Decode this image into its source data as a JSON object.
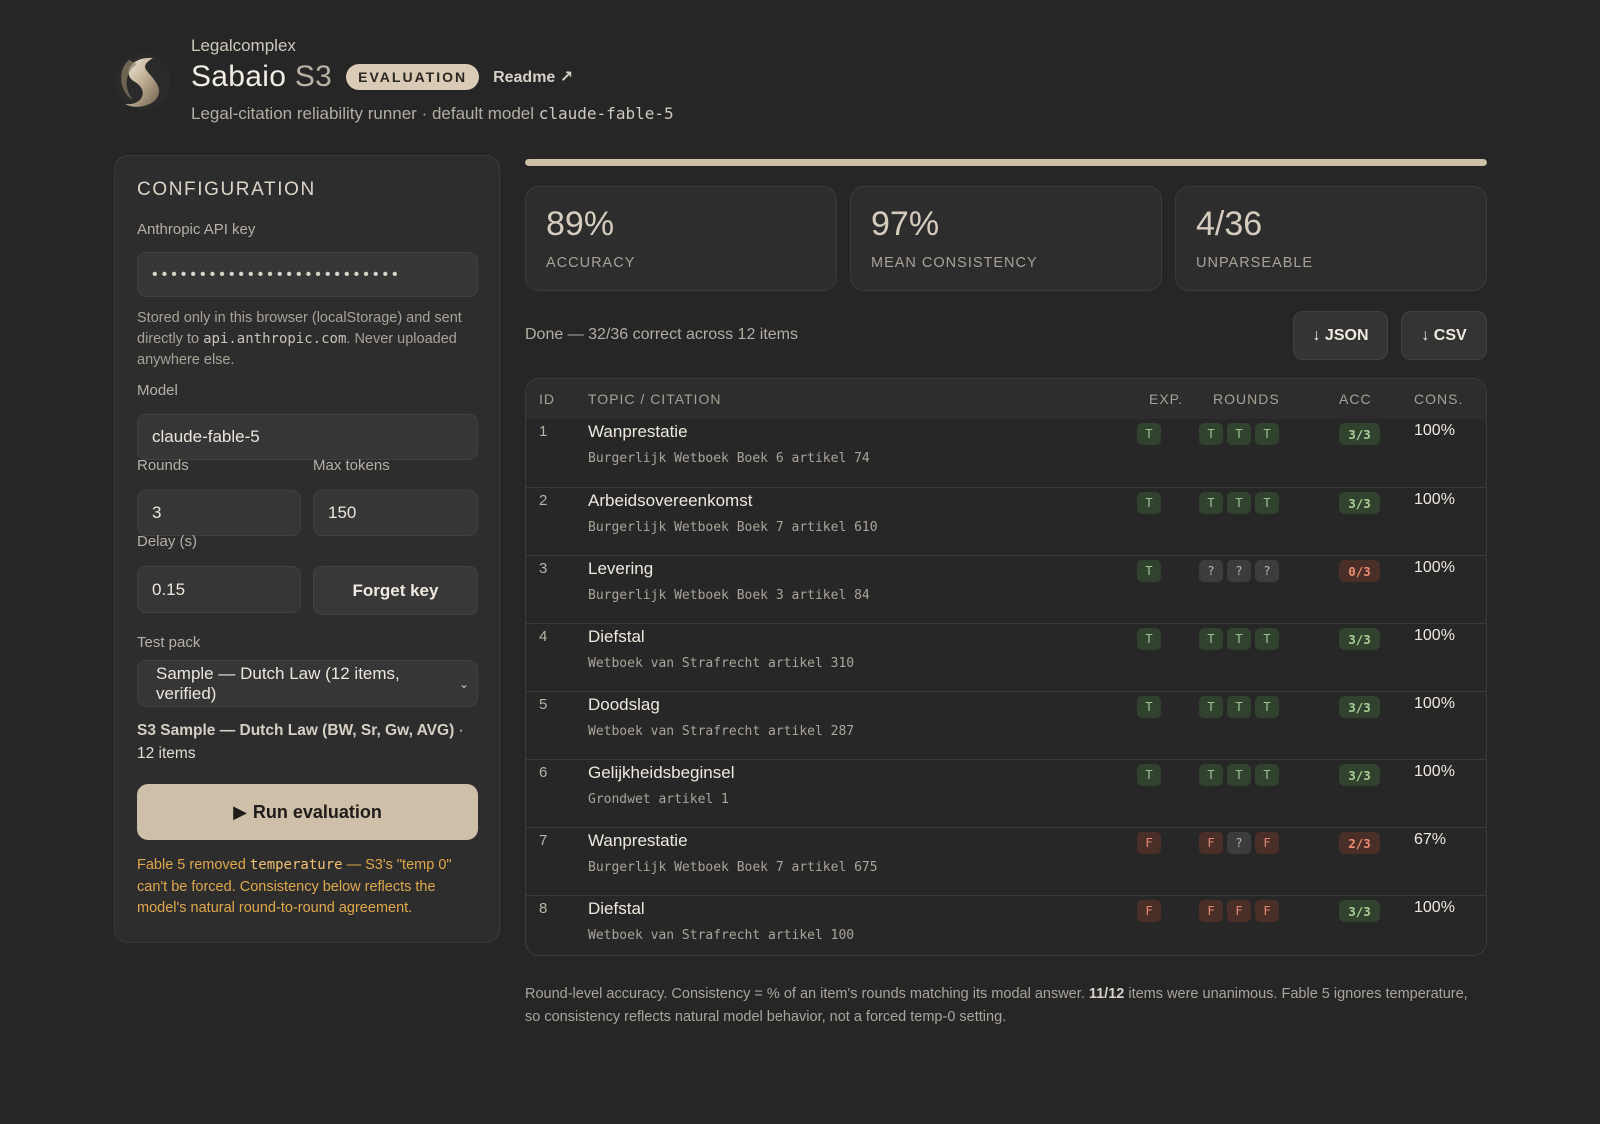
{
  "header": {
    "org": "Legalcomplex",
    "product": "Sabaio",
    "version": "S3",
    "badge": "EVALUATION",
    "readme_link": "Readme ↗",
    "subtitle_prefix": "Legal-citation reliability runner · default model",
    "default_model": "claude-fable-5"
  },
  "config": {
    "title": "CONFIGURATION",
    "api_key_label": "Anthropic API key",
    "api_key_value": "••••••••••••••••••••••••••",
    "storage_note_1": "Stored only in this browser (localStorage) and sent directly to",
    "storage_note_endpoint": "api.anthropic.com",
    "storage_note_2": ". Never uploaded anywhere else.",
    "model_label": "Model",
    "model_value": "claude-fable-5",
    "rounds_label": "Rounds",
    "rounds_value": "3",
    "max_tokens_label": "Max tokens",
    "max_tokens_value": "150",
    "delay_label": "Delay (s)",
    "delay_value": "0.15",
    "forget_button": "Forget key",
    "test_pack_label": "Test pack",
    "test_pack_value": "Sample — Dutch Law (12 items, verified)",
    "pack_name": "S3 Sample — Dutch Law (BW, Sr, Gw, AVG)",
    "pack_count": " · 12 items",
    "run_button": "Run evaluation",
    "warning_1": "Fable 5 removed",
    "warning_param": "temperature",
    "warning_2": " — S3's \"temp 0\" can't be forced. Consistency below reflects the model's natural round-to-round agreement."
  },
  "progress": {
    "fraction": 1.0
  },
  "stats": [
    {
      "value": "89%",
      "label": "ACCURACY"
    },
    {
      "value": "97%",
      "label": "MEAN CONSISTENCY"
    },
    {
      "value": "4/36",
      "label": "UNPARSEABLE"
    }
  ],
  "status": "Done — 32/36 correct across 12 items",
  "downloads": {
    "json": "↓ JSON",
    "csv": "↓ CSV"
  },
  "table": {
    "headers": {
      "id": "ID",
      "topic": "TOPIC / CITATION",
      "exp": "EXP.",
      "rounds": "ROUNDS",
      "acc": "ACC",
      "cons": "CONS."
    },
    "rows": [
      {
        "id": "1",
        "topic": "Wanprestatie",
        "citation": "Burgerlijk Wetboek Boek 6 artikel 74",
        "exp": "T",
        "rounds": [
          "T",
          "T",
          "T"
        ],
        "acc": "3/3",
        "acc_status": "good",
        "cons": "100%"
      },
      {
        "id": "2",
        "topic": "Arbeidsovereenkomst",
        "citation": "Burgerlijk Wetboek Boek 7 artikel 610",
        "exp": "T",
        "rounds": [
          "T",
          "T",
          "T"
        ],
        "acc": "3/3",
        "acc_status": "good",
        "cons": "100%"
      },
      {
        "id": "3",
        "topic": "Levering",
        "citation": "Burgerlijk Wetboek Boek 3 artikel 84",
        "exp": "T",
        "rounds": [
          "?",
          "?",
          "?"
        ],
        "acc": "0/3",
        "acc_status": "bad",
        "cons": "100%"
      },
      {
        "id": "4",
        "topic": "Diefstal",
        "citation": "Wetboek van Strafrecht artikel 310",
        "exp": "T",
        "rounds": [
          "T",
          "T",
          "T"
        ],
        "acc": "3/3",
        "acc_status": "good",
        "cons": "100%"
      },
      {
        "id": "5",
        "topic": "Doodslag",
        "citation": "Wetboek van Strafrecht artikel 287",
        "exp": "T",
        "rounds": [
          "T",
          "T",
          "T"
        ],
        "acc": "3/3",
        "acc_status": "good",
        "cons": "100%"
      },
      {
        "id": "6",
        "topic": "Gelijkheidsbeginsel",
        "citation": "Grondwet artikel 1",
        "exp": "T",
        "rounds": [
          "T",
          "T",
          "T"
        ],
        "acc": "3/3",
        "acc_status": "good",
        "cons": "100%"
      },
      {
        "id": "7",
        "topic": "Wanprestatie",
        "citation": "Burgerlijk Wetboek Boek 7 artikel 675",
        "exp": "F",
        "rounds": [
          "F",
          "?",
          "F"
        ],
        "acc": "2/3",
        "acc_status": "bad",
        "cons": "67%"
      },
      {
        "id": "8",
        "topic": "Diefstal",
        "citation": "Wetboek van Strafrecht artikel 100",
        "exp": "F",
        "rounds": [
          "F",
          "F",
          "F"
        ],
        "acc": "3/3",
        "acc_status": "good",
        "cons": "100%"
      }
    ]
  },
  "footnote": {
    "part1": "Round-level accuracy. Consistency = % of an item's rounds matching its modal answer. ",
    "unanimous": "11/12",
    "part2": " items were unanimous. Fable 5 ignores temperature, so consistency reflects natural model behavior, not a forced temp-0 setting."
  },
  "colors": {
    "accent": "#cdbfa8",
    "true_chip": "#31432f",
    "false_chip": "#4a2e28",
    "warning": "#e0a84a"
  }
}
